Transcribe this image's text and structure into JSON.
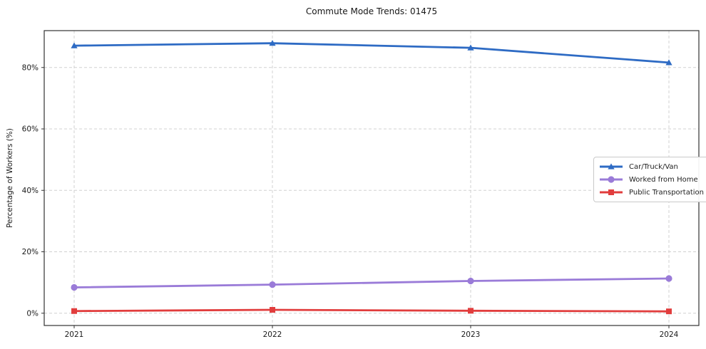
{
  "chart_data": {
    "type": "line",
    "title": "Commute Mode Trends: 01475",
    "xlabel": "",
    "ylabel": "Percentage of Workers (%)",
    "x": [
      "2021",
      "2022",
      "2023",
      "2024"
    ],
    "series": [
      {
        "name": "Car/Truck/Van",
        "color": "#2e6bc4",
        "marker": "triangle-up",
        "values": [
          87.1,
          87.9,
          86.4,
          81.6
        ]
      },
      {
        "name": "Worked from Home",
        "color": "#9a7bd8",
        "marker": "circle",
        "values": [
          8.4,
          9.3,
          10.5,
          11.3
        ]
      },
      {
        "name": "Public Transportation",
        "color": "#e13d3d",
        "marker": "square",
        "values": [
          0.7,
          1.1,
          0.8,
          0.6
        ]
      }
    ],
    "ylim": [
      -4,
      92
    ],
    "yticks": [
      {
        "v": 0,
        "label": "0%"
      },
      {
        "v": 20,
        "label": "20%"
      },
      {
        "v": 40,
        "label": "40%"
      },
      {
        "v": 60,
        "label": "60%"
      },
      {
        "v": 80,
        "label": "80%"
      }
    ],
    "grid": true,
    "grid_style": "dashed",
    "grid_color": "#d0d0d0",
    "spine_color": "#333333",
    "tick_text_color": "#1a1a1a",
    "legend_position": "center-right"
  }
}
